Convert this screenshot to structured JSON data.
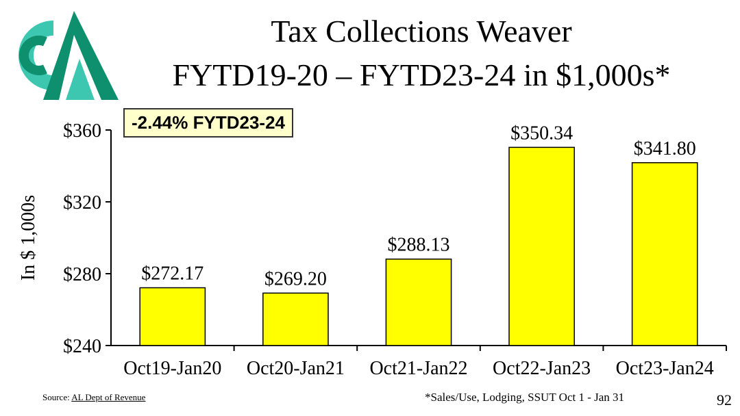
{
  "title": {
    "line1": "Tax Collections Weaver",
    "line2": "FYTD19-20 – FYTD23-24 in $1,000s*"
  },
  "callout": "-2.44% FYTD23-24",
  "colors": {
    "bar_fill": "#ffff00",
    "bar_stroke": "#000000",
    "logo_dark": "#0e8f6e",
    "logo_light": "#3dc7b0",
    "callout_bg": "#ffffcc"
  },
  "chart_data": {
    "type": "bar",
    "categories": [
      "Oct19-Jan20",
      "Oct20-Jan21",
      "Oct21-Jan22",
      "Oct22-Jan23",
      "Oct23-Jan24"
    ],
    "values": [
      272.17,
      269.2,
      288.13,
      350.34,
      341.8
    ],
    "data_labels": [
      "$272.17",
      "$269.20",
      "$288.13",
      "$350.34",
      "$341.80"
    ],
    "ylabel": "In $ 1,000s",
    "ylim": [
      240,
      360
    ],
    "yticks": [
      240,
      280,
      320,
      360
    ],
    "ytick_labels": [
      "$240",
      "$280",
      "$320",
      "$360"
    ],
    "grid": false
  },
  "footer": {
    "source_prefix": "Source: ",
    "source_link": "AL Dept of Revenue",
    "footnote": "*Sales/Use, Lodging, SSUT Oct 1 - Jan 31",
    "page_number": "92"
  }
}
